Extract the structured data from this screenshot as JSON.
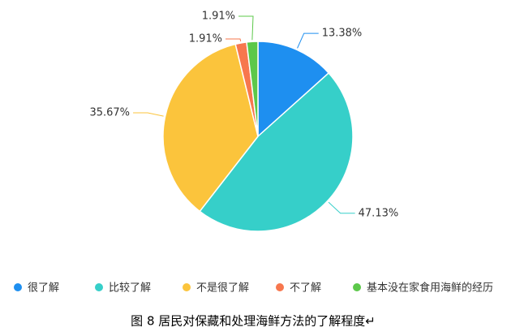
{
  "chart_data": {
    "type": "pie",
    "title": "图  8 居民对保藏和处理海鲜方法的了解程度↵",
    "categories": [
      "很了解",
      "比较了解",
      "不是很了解",
      "不了解",
      "基本没在家食用海鲜的经历"
    ],
    "values": [
      13.38,
      47.13,
      35.67,
      1.91,
      1.91
    ],
    "value_labels": [
      "13.38%",
      "47.13%",
      "35.67%",
      "1.91%",
      "1.91%"
    ],
    "colors": [
      "#1e8ff0",
      "#36cfc9",
      "#fbc43c",
      "#f7774e",
      "#5cc84a"
    ],
    "legend": "bottom"
  }
}
